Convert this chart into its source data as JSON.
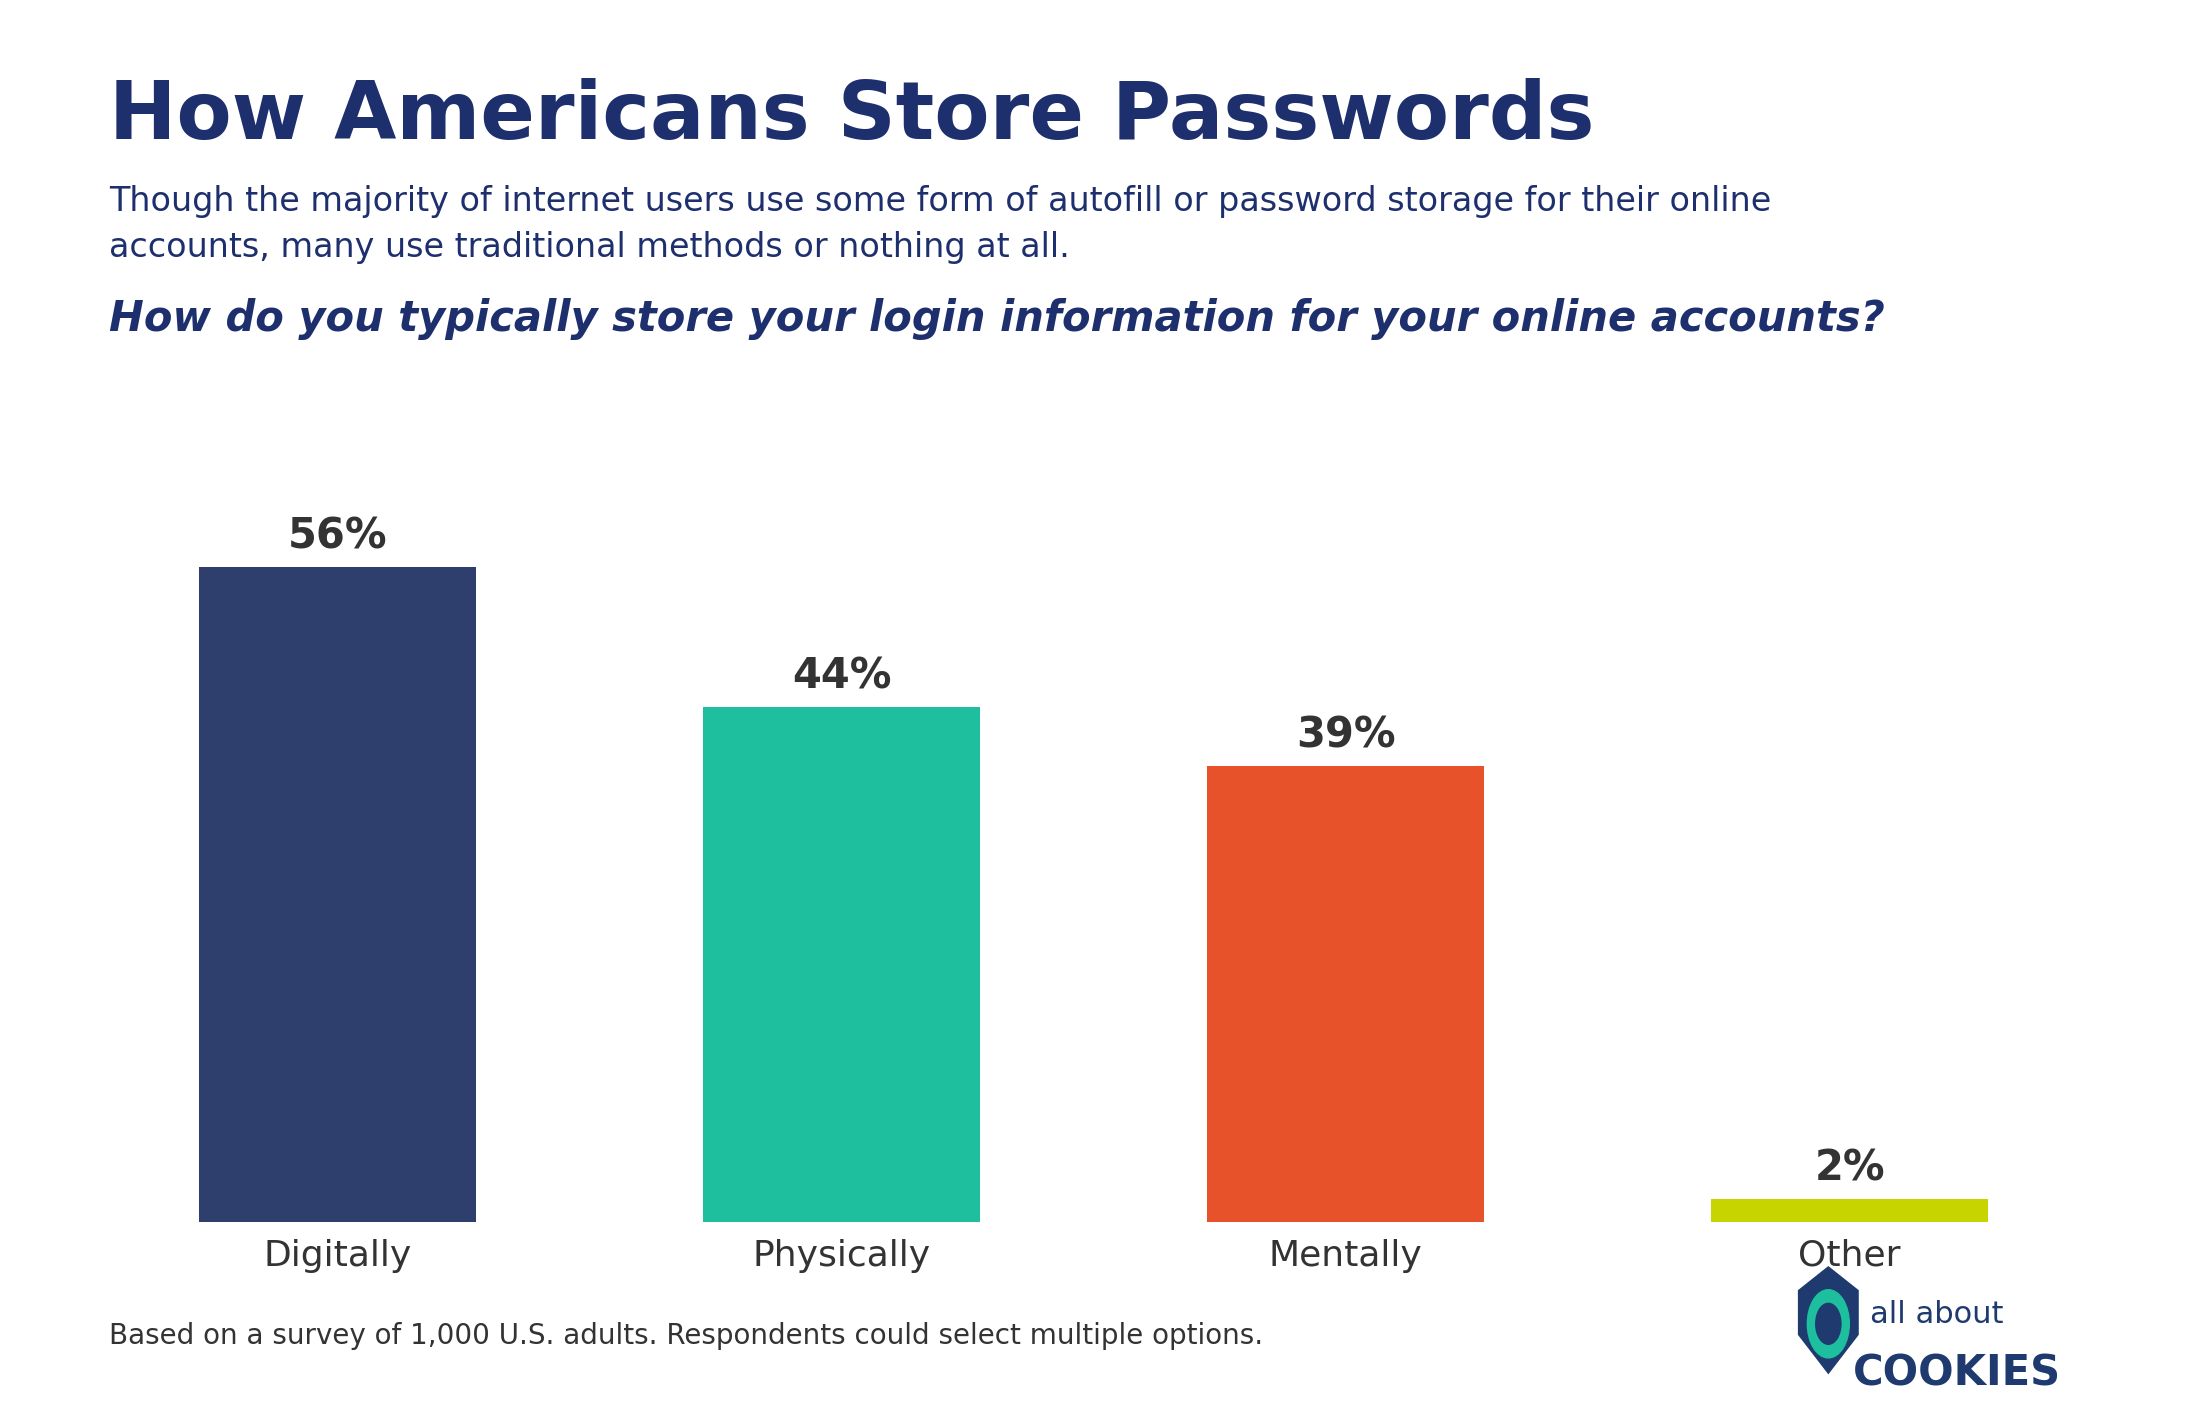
{
  "title": "How Americans Store Passwords",
  "subtitle": "Though the majority of internet users use some form of autofill or password storage for their online\naccounts, many use traditional methods or nothing at all.",
  "question": "How do you typically store your login information for your online accounts?",
  "categories": [
    "Digitally",
    "Physically",
    "Mentally",
    "Other"
  ],
  "values": [
    56,
    44,
    39,
    2
  ],
  "bar_colors": [
    "#2e3f6e",
    "#1dbf9e",
    "#e8522a",
    "#c8d400"
  ],
  "value_labels": [
    "56%",
    "44%",
    "39%",
    "2%"
  ],
  "footer": "Based on a survey of 1,000 U.S. adults. Respondents could select multiple options.",
  "background_color": "#ffffff",
  "title_color": "#1e2f6e",
  "subtitle_color": "#1e2f6e",
  "question_color": "#1e2f6e",
  "category_color": "#333333",
  "value_label_color": "#333333",
  "footer_color": "#333333",
  "top_bar_color": "#2e3f6e",
  "title_fontsize": 58,
  "subtitle_fontsize": 24,
  "question_fontsize": 30,
  "category_fontsize": 26,
  "value_label_fontsize": 30,
  "footer_fontsize": 20,
  "ylim": [
    0,
    68
  ]
}
